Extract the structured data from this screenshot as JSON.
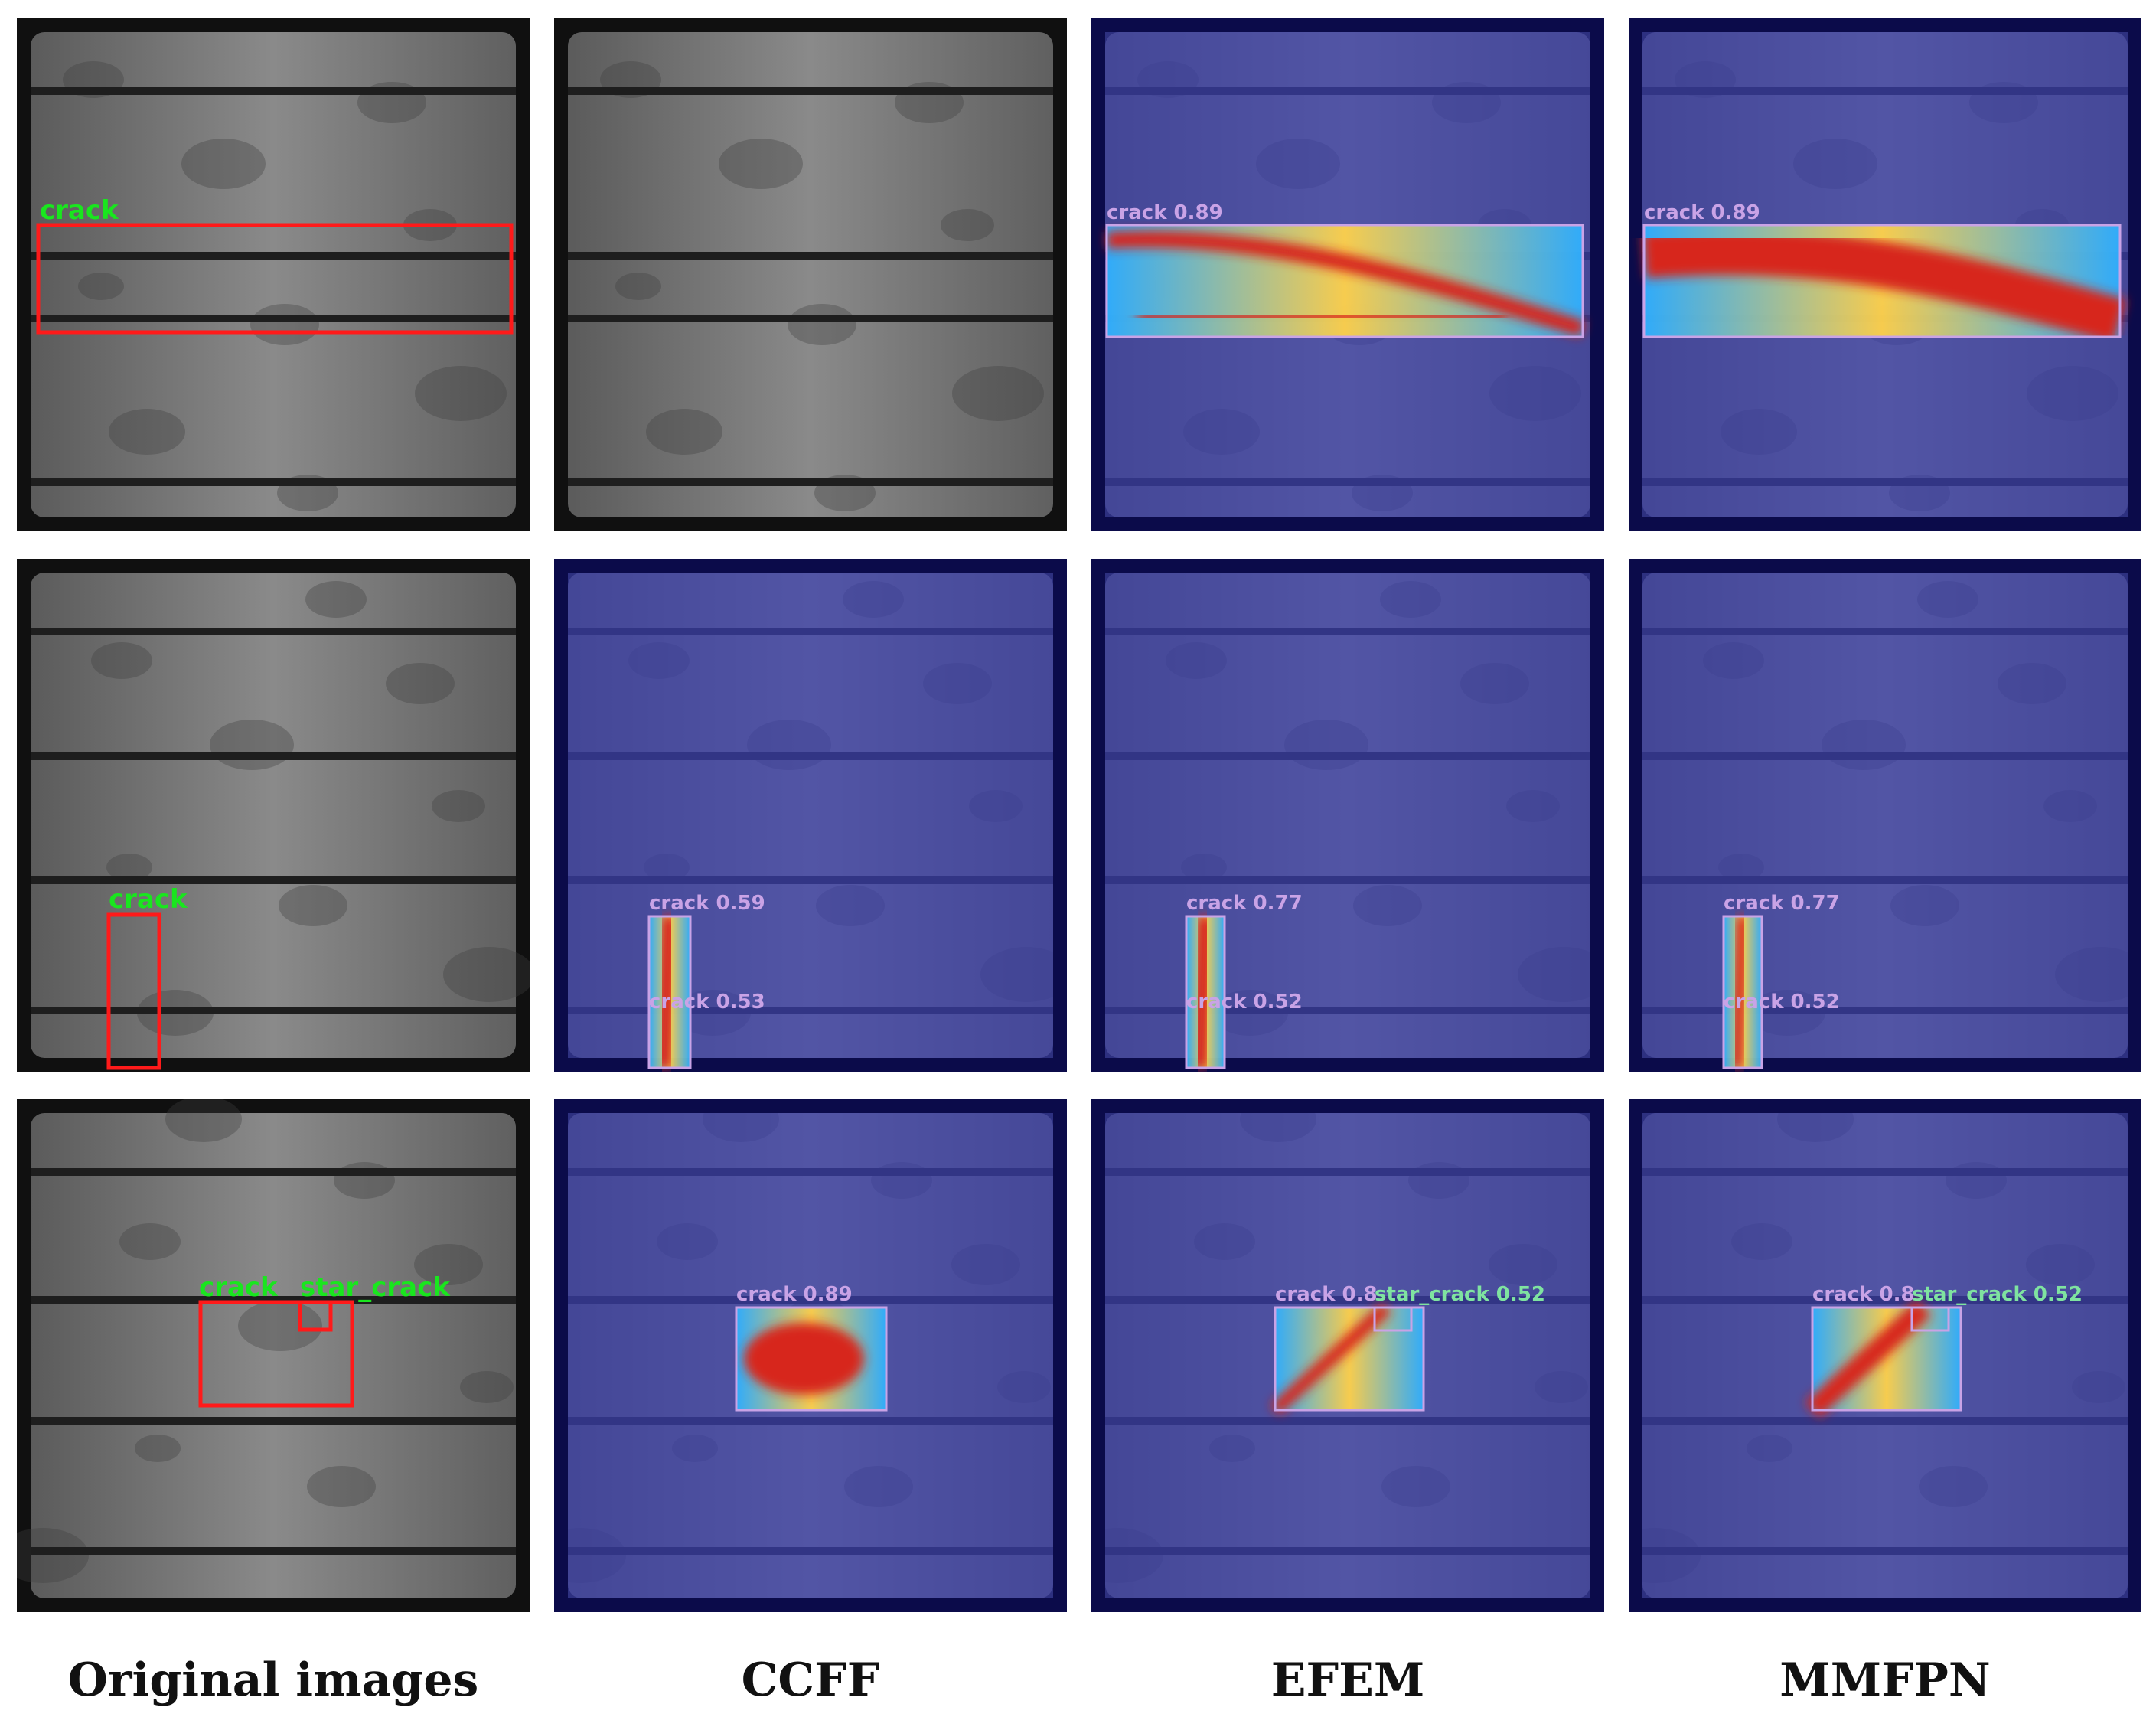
{
  "colors": {
    "page_background": "#ffffff",
    "annotation_box": "#ff1a1a",
    "annotation_label": "#19e61e",
    "prediction_box": "#c9a3e6",
    "prediction_label": "#c9a3e6",
    "star_crack_label": "#7fe3a0",
    "heatmap_overlay": "#3a3fb0",
    "heatmap_hot": "#d7261a",
    "heatmap_warm": "#ffd24a",
    "heatmap_cool": "#2fb0ff"
  },
  "columns": [
    {
      "key": "original",
      "label": "Original images"
    },
    {
      "key": "ccff",
      "label": "CCFF"
    },
    {
      "key": "efem",
      "label": "EFEM"
    },
    {
      "key": "mmfpn",
      "label": "MMFPN"
    }
  ],
  "rows": [
    {
      "original": {
        "labels": [
          {
            "text": "crack"
          }
        ]
      },
      "ccff": {
        "labels": []
      },
      "efem": {
        "labels": [
          {
            "text": "crack 0.89"
          }
        ]
      },
      "mmfpn": {
        "labels": [
          {
            "text": "crack 0.89"
          }
        ]
      }
    },
    {
      "original": {
        "labels": [
          {
            "text": "crack"
          }
        ]
      },
      "ccff": {
        "labels": [
          {
            "text": "crack 0.59"
          },
          {
            "text": "crack 0.53"
          }
        ]
      },
      "efem": {
        "labels": [
          {
            "text": "crack 0.77"
          },
          {
            "text": "crack 0.52"
          }
        ]
      },
      "mmfpn": {
        "labels": [
          {
            "text": "crack 0.77"
          },
          {
            "text": "crack 0.52"
          }
        ]
      }
    },
    {
      "original": {
        "labels": [
          {
            "text": "crack"
          },
          {
            "text": "star_crack"
          }
        ]
      },
      "ccff": {
        "labels": [
          {
            "text": "crack 0.89"
          }
        ]
      },
      "efem": {
        "labels": [
          {
            "text": "crack 0.8"
          },
          {
            "text": "star_crack 0.52"
          }
        ]
      },
      "mmfpn": {
        "labels": [
          {
            "text": "crack 0.8"
          },
          {
            "text": "star_crack 0.52"
          }
        ]
      }
    }
  ]
}
